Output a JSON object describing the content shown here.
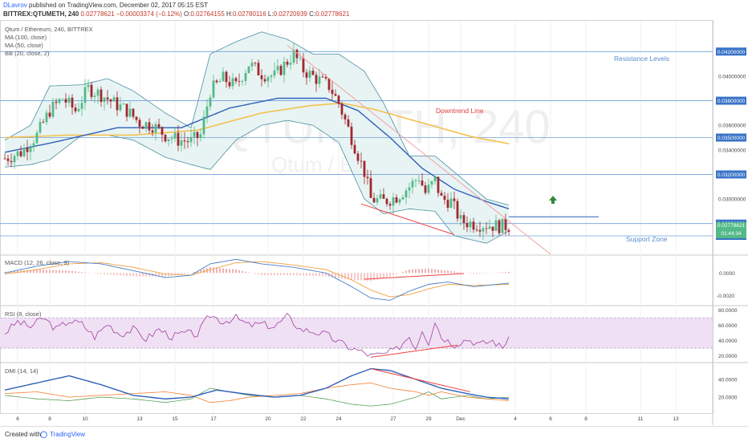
{
  "header": {
    "author": "DLavrov",
    "published_text": "published on TradingView.com, December 02, 2017 05:15 EST",
    "symbol_line": "BITTREX:QTUMETH, 240",
    "price": "0.02778621",
    "change": "−0.00003374 (−0.12%)",
    "open_label": "O:",
    "open": "0.02764155",
    "high_label": "H:",
    "high": "0.02780116",
    "low_label": "L:",
    "low": "0.02720939",
    "close_label": "C:",
    "close": "0.02778621"
  },
  "legend": {
    "title": "Qtum / Ethereum, 240, BITTREX",
    "ma100": "MA (100, close)",
    "ma50": "MA (50, close)",
    "bb": "BB (20, close, 2)"
  },
  "watermark": {
    "symbol": "QTUMETH, 240",
    "name": "Qtum / Ethereum"
  },
  "annotations": {
    "resistance": "Resistance Levels",
    "downtrend": "Downtrend Line",
    "support": "Support Zone"
  },
  "price_tags": {
    "current": "0.02778621",
    "countdown": "01:44:34"
  },
  "panes": {
    "macd_label": "MACD (12, 26, close, 9)",
    "rsi_label": "RSI (8, close)",
    "dmi_label": "DMI (14, 14)"
  },
  "footer": {
    "created": "Created with",
    "brand": "TradingView"
  },
  "colors": {
    "candle_up": "#53b987",
    "candle_down": "#a0282d",
    "bb_fill": "#e8f4f4",
    "bb_line": "#4a8fa0",
    "ma50": "#2e5fb8",
    "ma100": "#f4c14e",
    "level_line": "#6fa0d8",
    "downtrend": "#f4a0a0",
    "accent": "#f04040",
    "macd_line": "#4a7fc4",
    "signal_line": "#f0a040",
    "rsi_line": "#a040a0",
    "rsi_band": "#f0e0f4",
    "dmi_adx": "#2e5fb8",
    "dmi_plus": "#5aa05a",
    "dmi_minus": "#f08030",
    "arrow": "#2e8b3a"
  },
  "chart_data": [
    {
      "type": "candlestick",
      "title": "Qtum / Ethereum, 240, BITTREX",
      "x_ticks": [
        "6",
        "8",
        "10",
        "13",
        "15",
        "17",
        "20",
        "22",
        "24",
        "27",
        "29",
        "Dec",
        "4",
        "6",
        "8",
        "11",
        "13"
      ],
      "y_ticks": [
        "0.04000000",
        "0.03600000",
        "0.03400000",
        "0.03000000"
      ],
      "ylim": [
        0.0255,
        0.0445
      ],
      "levels": [
        0.042,
        0.038,
        0.035,
        0.032,
        0.028,
        0.027
      ],
      "level_labels": [
        "0.04200000",
        "0.03800000",
        "0.03500000",
        "0.03200000",
        "0.02800000",
        "0.02700000"
      ],
      "current_price": 0.02778621,
      "price_anchors": [
        [
          0,
          0.0333
        ],
        [
          5,
          0.0338
        ],
        [
          10,
          0.0352
        ],
        [
          14,
          0.0372
        ],
        [
          18,
          0.0382
        ],
        [
          22,
          0.0372
        ],
        [
          26,
          0.039
        ],
        [
          30,
          0.0385
        ],
        [
          34,
          0.0378
        ],
        [
          38,
          0.0372
        ],
        [
          42,
          0.0362
        ],
        [
          46,
          0.036
        ],
        [
          50,
          0.0352
        ],
        [
          54,
          0.0348
        ],
        [
          58,
          0.0347
        ],
        [
          61,
          0.0352
        ],
        [
          64,
          0.0388
        ],
        [
          68,
          0.0398
        ],
        [
          72,
          0.0392
        ],
        [
          76,
          0.041
        ],
        [
          80,
          0.0402
        ],
        [
          84,
          0.04
        ],
        [
          88,
          0.0412
        ],
        [
          90,
          0.0418
        ],
        [
          93,
          0.0405
        ],
        [
          97,
          0.0398
        ],
        [
          101,
          0.0392
        ],
        [
          104,
          0.0378
        ],
        [
          108,
          0.035
        ],
        [
          112,
          0.0322
        ],
        [
          114,
          0.03
        ],
        [
          118,
          0.0298
        ],
        [
          122,
          0.0302
        ],
        [
          126,
          0.031
        ],
        [
          129,
          0.0318
        ],
        [
          131,
          0.0305
        ],
        [
          134,
          0.0315
        ],
        [
          136,
          0.03
        ],
        [
          139,
          0.0298
        ],
        [
          142,
          0.0282
        ],
        [
          146,
          0.028
        ],
        [
          150,
          0.0279
        ],
        [
          154,
          0.0278
        ],
        [
          157,
          0.0278
        ]
      ],
      "ma50_anchors": [
        [
          0,
          0.0338
        ],
        [
          15,
          0.0346
        ],
        [
          35,
          0.0358
        ],
        [
          55,
          0.0358
        ],
        [
          70,
          0.0374
        ],
        [
          85,
          0.0382
        ],
        [
          100,
          0.0382
        ],
        [
          110,
          0.0372
        ],
        [
          120,
          0.035
        ],
        [
          130,
          0.0325
        ],
        [
          140,
          0.0308
        ],
        [
          150,
          0.0298
        ],
        [
          157,
          0.0292
        ]
      ],
      "ma100_anchors": [
        [
          0,
          0.035
        ],
        [
          20,
          0.0352
        ],
        [
          40,
          0.0352
        ],
        [
          60,
          0.0356
        ],
        [
          80,
          0.037
        ],
        [
          95,
          0.0376
        ],
        [
          105,
          0.0378
        ],
        [
          115,
          0.0373
        ],
        [
          130,
          0.0362
        ],
        [
          145,
          0.0351
        ],
        [
          157,
          0.0345
        ]
      ],
      "bb_upper_anchors": [
        [
          0,
          0.0348
        ],
        [
          8,
          0.036
        ],
        [
          14,
          0.0392
        ],
        [
          24,
          0.0393
        ],
        [
          32,
          0.0398
        ],
        [
          40,
          0.0388
        ],
        [
          50,
          0.037
        ],
        [
          58,
          0.0358
        ],
        [
          64,
          0.0418
        ],
        [
          72,
          0.0428
        ],
        [
          80,
          0.0436
        ],
        [
          88,
          0.043
        ],
        [
          96,
          0.0418
        ],
        [
          104,
          0.0418
        ],
        [
          112,
          0.0404
        ],
        [
          118,
          0.0378
        ],
        [
          126,
          0.0335
        ],
        [
          134,
          0.0335
        ],
        [
          140,
          0.0322
        ],
        [
          150,
          0.03
        ],
        [
          157,
          0.0295
        ]
      ],
      "bb_lower_anchors": [
        [
          0,
          0.0326
        ],
        [
          8,
          0.0328
        ],
        [
          14,
          0.0332
        ],
        [
          24,
          0.0352
        ],
        [
          32,
          0.0352
        ],
        [
          40,
          0.0348
        ],
        [
          50,
          0.0334
        ],
        [
          58,
          0.0328
        ],
        [
          64,
          0.0324
        ],
        [
          72,
          0.0348
        ],
        [
          80,
          0.036
        ],
        [
          88,
          0.0364
        ],
        [
          96,
          0.036
        ],
        [
          104,
          0.0346
        ],
        [
          112,
          0.03
        ],
        [
          118,
          0.0288
        ],
        [
          126,
          0.0292
        ],
        [
          134,
          0.029
        ],
        [
          140,
          0.027
        ],
        [
          150,
          0.0264
        ],
        [
          157,
          0.0274
        ]
      ],
      "downtrend_line": [
        [
          88,
          0.0425
        ],
        [
          170,
          0.0255
        ]
      ],
      "lower_trend_line": [
        [
          111,
          0.0296
        ],
        [
          140,
          0.0271
        ]
      ],
      "target_line": [
        [
          157,
          0.02855
        ],
        [
          185,
          0.02855
        ]
      ]
    },
    {
      "type": "line",
      "title": "MACD (12, 26, close, 9)",
      "y_ticks": [
        "0.0000",
        "-0.0020"
      ],
      "ylim": [
        -0.0028,
        0.0015
      ],
      "macd_anchors": [
        [
          0,
          0.0
        ],
        [
          10,
          0.0006
        ],
        [
          20,
          0.001
        ],
        [
          30,
          0.0008
        ],
        [
          40,
          0.0002
        ],
        [
          50,
          -0.0004
        ],
        [
          58,
          -0.0002
        ],
        [
          64,
          0.0008
        ],
        [
          72,
          0.0012
        ],
        [
          80,
          0.0008
        ],
        [
          90,
          0.0005
        ],
        [
          100,
          0.0
        ],
        [
          108,
          -0.0012
        ],
        [
          114,
          -0.0022
        ],
        [
          120,
          -0.0024
        ],
        [
          126,
          -0.0016
        ],
        [
          132,
          -0.001
        ],
        [
          138,
          -0.0008
        ],
        [
          146,
          -0.0012
        ],
        [
          157,
          -0.0009
        ]
      ],
      "signal_anchors": [
        [
          0,
          -0.0001
        ],
        [
          10,
          0.0003
        ],
        [
          20,
          0.0008
        ],
        [
          30,
          0.0009
        ],
        [
          40,
          0.0005
        ],
        [
          50,
          -0.0001
        ],
        [
          58,
          -0.0002
        ],
        [
          64,
          0.0003
        ],
        [
          72,
          0.0009
        ],
        [
          80,
          0.001
        ],
        [
          90,
          0.0007
        ],
        [
          100,
          0.0003
        ],
        [
          108,
          -0.0006
        ],
        [
          114,
          -0.0015
        ],
        [
          120,
          -0.0021
        ],
        [
          126,
          -0.0019
        ],
        [
          132,
          -0.0014
        ],
        [
          138,
          -0.001
        ],
        [
          146,
          -0.0011
        ],
        [
          157,
          -0.001
        ]
      ],
      "trend_line": [
        [
          112,
          -0.00055
        ],
        [
          143,
          -5e-05
        ]
      ]
    },
    {
      "type": "line",
      "title": "RSI (8, close)",
      "y_ticks": [
        "80.0000",
        "60.0000",
        "40.0000",
        "20.0000"
      ],
      "ylim": [
        12,
        85
      ],
      "band": [
        30,
        70
      ],
      "rsi_anchors": [
        [
          0,
          50
        ],
        [
          4,
          65
        ],
        [
          8,
          58
        ],
        [
          12,
          70
        ],
        [
          16,
          55
        ],
        [
          20,
          66
        ],
        [
          24,
          62
        ],
        [
          28,
          45
        ],
        [
          32,
          62
        ],
        [
          36,
          48
        ],
        [
          40,
          55
        ],
        [
          44,
          42
        ],
        [
          48,
          55
        ],
        [
          52,
          45
        ],
        [
          56,
          50
        ],
        [
          60,
          48
        ],
        [
          62,
          62
        ],
        [
          64,
          74
        ],
        [
          68,
          65
        ],
        [
          72,
          70
        ],
        [
          76,
          60
        ],
        [
          80,
          62
        ],
        [
          84,
          58
        ],
        [
          88,
          72
        ],
        [
          92,
          55
        ],
        [
          96,
          52
        ],
        [
          100,
          48
        ],
        [
          104,
          38
        ],
        [
          108,
          30
        ],
        [
          112,
          24
        ],
        [
          114,
          20
        ],
        [
          118,
          22
        ],
        [
          122,
          28
        ],
        [
          126,
          46
        ],
        [
          128,
          30
        ],
        [
          130,
          55
        ],
        [
          132,
          38
        ],
        [
          134,
          66
        ],
        [
          136,
          45
        ],
        [
          140,
          35
        ],
        [
          144,
          42
        ],
        [
          148,
          35
        ],
        [
          152,
          40
        ],
        [
          155,
          30
        ],
        [
          157,
          46
        ]
      ],
      "trend_line": [
        [
          114,
          18
        ],
        [
          141,
          34
        ]
      ]
    },
    {
      "type": "line",
      "title": "DMI (14, 14)",
      "y_ticks": [
        "40.0000",
        "20.0000"
      ],
      "ylim": [
        2,
        58
      ],
      "adx_anchors": [
        [
          0,
          28
        ],
        [
          10,
          36
        ],
        [
          20,
          44
        ],
        [
          30,
          34
        ],
        [
          40,
          22
        ],
        [
          50,
          18
        ],
        [
          58,
          20
        ],
        [
          66,
          28
        ],
        [
          74,
          24
        ],
        [
          84,
          20
        ],
        [
          92,
          22
        ],
        [
          100,
          30
        ],
        [
          108,
          44
        ],
        [
          114,
          52
        ],
        [
          120,
          50
        ],
        [
          128,
          40
        ],
        [
          136,
          30
        ],
        [
          144,
          24
        ],
        [
          150,
          20
        ],
        [
          157,
          18
        ]
      ],
      "plus_di_anchors": [
        [
          0,
          22
        ],
        [
          10,
          18
        ],
        [
          20,
          16
        ],
        [
          30,
          20
        ],
        [
          40,
          18
        ],
        [
          50,
          14
        ],
        [
          58,
          18
        ],
        [
          64,
          30
        ],
        [
          70,
          26
        ],
        [
          76,
          22
        ],
        [
          84,
          20
        ],
        [
          92,
          22
        ],
        [
          100,
          18
        ],
        [
          108,
          12
        ],
        [
          114,
          10
        ],
        [
          120,
          12
        ],
        [
          128,
          20
        ],
        [
          132,
          26
        ],
        [
          136,
          18
        ],
        [
          144,
          22
        ],
        [
          150,
          18
        ],
        [
          157,
          20
        ]
      ],
      "minus_di_anchors": [
        [
          0,
          24
        ],
        [
          10,
          26
        ],
        [
          20,
          20
        ],
        [
          30,
          22
        ],
        [
          40,
          24
        ],
        [
          50,
          26
        ],
        [
          58,
          22
        ],
        [
          64,
          14
        ],
        [
          70,
          16
        ],
        [
          76,
          20
        ],
        [
          84,
          22
        ],
        [
          92,
          24
        ],
        [
          100,
          30
        ],
        [
          108,
          34
        ],
        [
          114,
          36
        ],
        [
          120,
          30
        ],
        [
          128,
          26
        ],
        [
          132,
          22
        ],
        [
          136,
          26
        ],
        [
          144,
          20
        ],
        [
          150,
          18
        ],
        [
          157,
          16
        ]
      ],
      "trend_line": [
        [
          114,
          52
        ],
        [
          145,
          26
        ]
      ]
    }
  ]
}
